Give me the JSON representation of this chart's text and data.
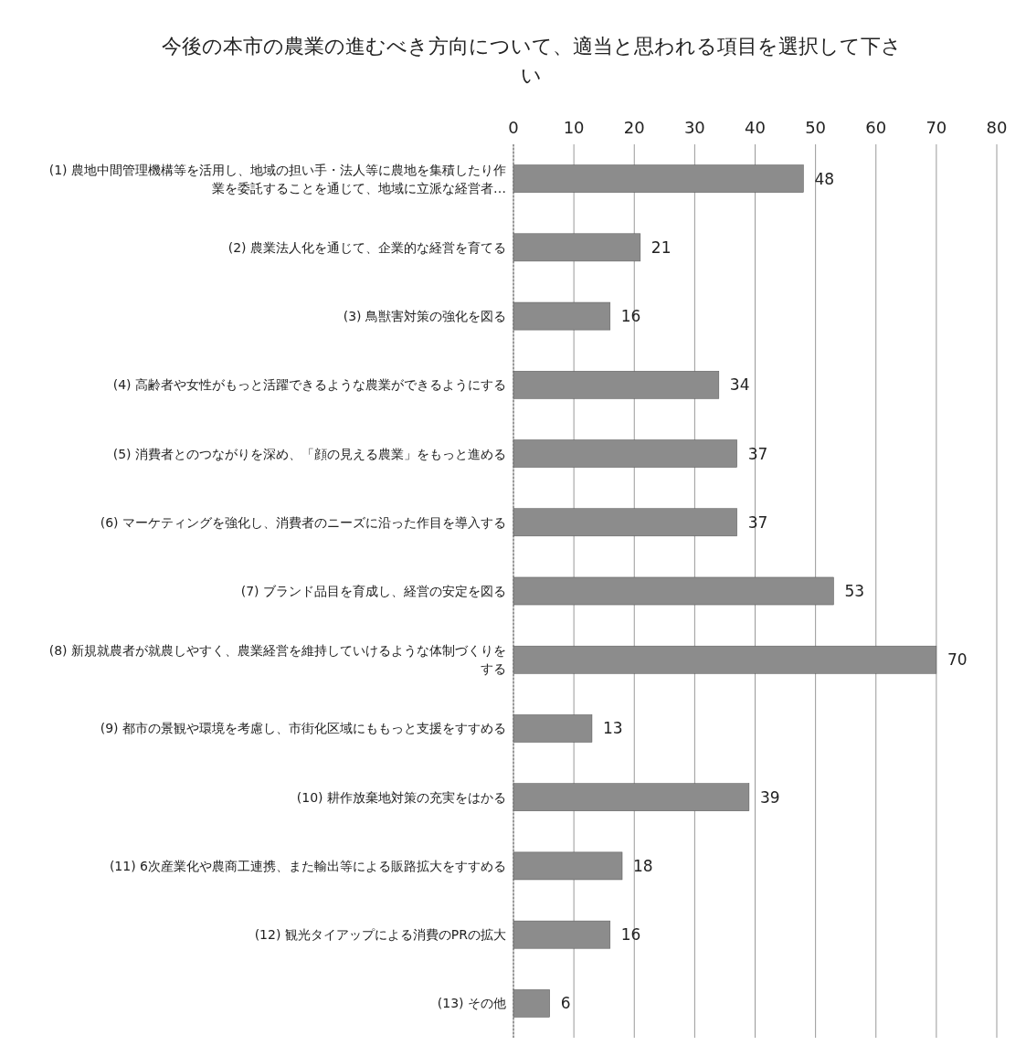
{
  "chart_data": {
    "type": "bar",
    "orientation": "horizontal",
    "title": "今後の本市の農業の進むべき方向について、適当と思われる項目を選択して下さい",
    "categories": [
      "(1) 農地中間管理機構等を活用し、地域の担い手・法人等に農地を集積したり作業を委託することを通じて、地域に立派な経営者…",
      "(2)  農業法人化を通じて、企業的な経営を育てる",
      "(3)   鳥獣害対策の強化を図る",
      "(4)   高齢者や女性がもっと活躍できるような農業ができるようにする",
      "(5)  消費者とのつながりを深め、「顔の見える農業」をもっと進める",
      "(6)  マーケティングを強化し、消費者のニーズに沿った作目を導入する",
      "(7)  ブランド品目を育成し、経営の安定を図る",
      "(8)  新規就農者が就農しやすく、農業経営を維持していけるような体制づくりをする",
      "(9)  都市の景観や環境を考慮し、市街化区域にももっと支援をすすめる",
      "(10) 耕作放棄地対策の充実をはかる",
      "(11) 6次産業化や農商工連携、また輸出等による販路拡大をすすめる",
      "(12) 観光タイアップによる消費のPRの拡大",
      "(13) その他"
    ],
    "values": [
      48,
      21,
      16,
      34,
      37,
      37,
      53,
      70,
      13,
      39,
      18,
      16,
      6
    ],
    "color": "#8c8c8c",
    "xlim": [
      0,
      80
    ],
    "xticks": [
      0,
      10,
      20,
      30,
      40,
      50,
      60,
      70,
      80
    ],
    "grid": "x",
    "data_labels": true
  }
}
